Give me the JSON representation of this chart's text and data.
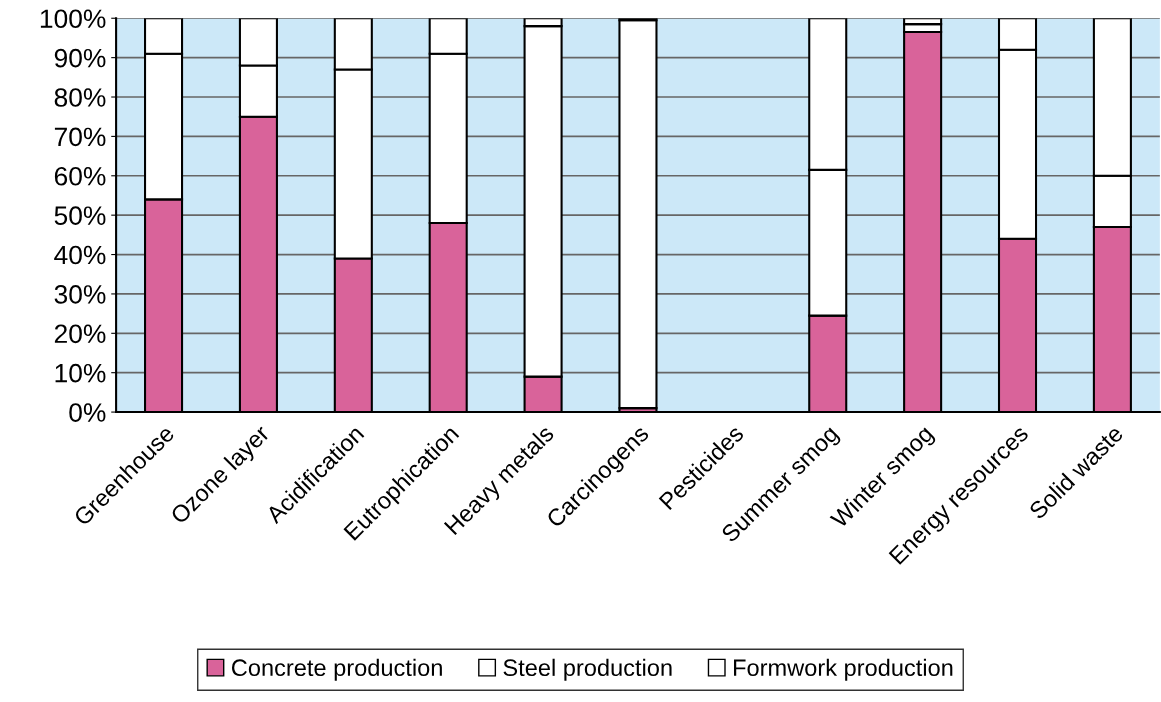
{
  "chart_data": {
    "type": "bar",
    "stacked": true,
    "categories": [
      "Greenhouse",
      "Ozone layer",
      "Acidification",
      "Eutrophication",
      "Heavy metals",
      "Carcinogens",
      "Pesticides",
      "Summer smog",
      "Winter smog",
      "Energy resources",
      "Solid waste"
    ],
    "series": [
      {
        "name": "Concrete production",
        "color": "#d9639a",
        "values": [
          54,
          75,
          39,
          48,
          9,
          1,
          null,
          24.5,
          96.5,
          44,
          47
        ]
      },
      {
        "name": "Steel production",
        "color": "#ffffff",
        "values": [
          37,
          13,
          48,
          43,
          89,
          98.5,
          null,
          37,
          2,
          48,
          13
        ]
      },
      {
        "name": "Formwork production",
        "color": "#ffffff",
        "values": [
          9,
          12,
          13,
          9,
          2,
          0.5,
          null,
          38.5,
          1.5,
          8,
          40
        ]
      }
    ],
    "ylim": [
      0,
      100
    ],
    "yticks": [
      {
        "value": 0,
        "label": "0%"
      },
      {
        "value": 10,
        "label": "10%"
      },
      {
        "value": 20,
        "label": "20%"
      },
      {
        "value": 30,
        "label": "30%"
      },
      {
        "value": 40,
        "label": "40%"
      },
      {
        "value": 50,
        "label": "50%"
      },
      {
        "value": 60,
        "label": "60%"
      },
      {
        "value": 70,
        "label": "70%"
      },
      {
        "value": 80,
        "label": "80%"
      },
      {
        "value": 90,
        "label": "90%"
      },
      {
        "value": 100,
        "label": "100%"
      }
    ],
    "grid": "y",
    "legend": "bottom"
  }
}
